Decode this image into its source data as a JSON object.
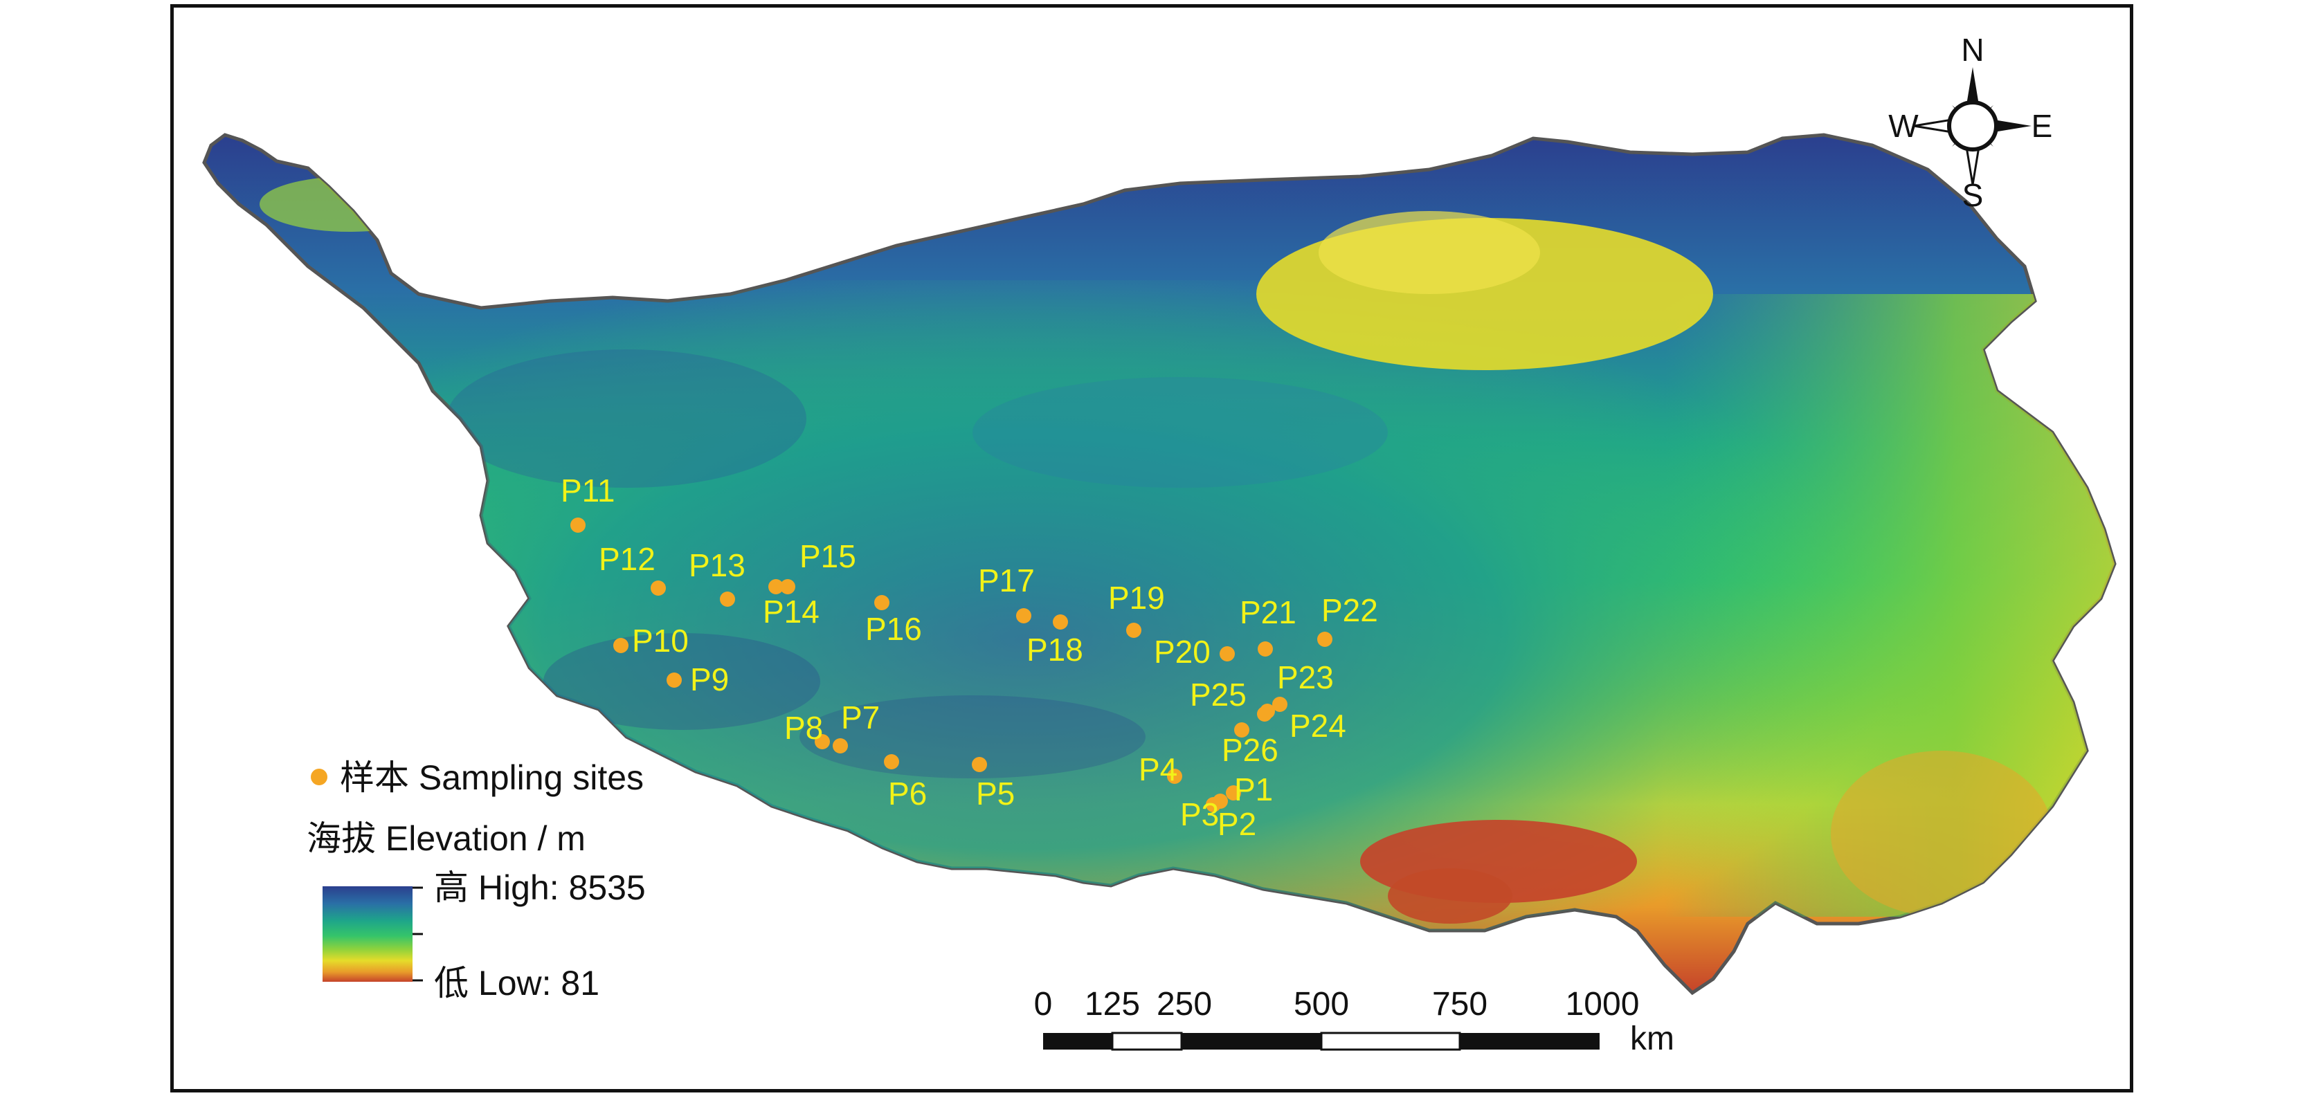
{
  "map": {
    "region_fill_colors": [
      "#2f4f95",
      "#2a7aa8",
      "#1ea28a",
      "#33c36a",
      "#8bd23c",
      "#e3dc28",
      "#e8a82a",
      "#c8502a"
    ]
  },
  "sites": [
    {
      "label": "P1"
    },
    {
      "label": "P2"
    },
    {
      "label": "P3"
    },
    {
      "label": "P4"
    },
    {
      "label": "P5"
    },
    {
      "label": "P6"
    },
    {
      "label": "P7"
    },
    {
      "label": "P8"
    },
    {
      "label": "P9"
    },
    {
      "label": "P10"
    },
    {
      "label": "P11"
    },
    {
      "label": "P12"
    },
    {
      "label": "P13"
    },
    {
      "label": "P14"
    },
    {
      "label": "P15"
    },
    {
      "label": "P16"
    },
    {
      "label": "P17"
    },
    {
      "label": "P18"
    },
    {
      "label": "P19"
    },
    {
      "label": "P20"
    },
    {
      "label": "P21"
    },
    {
      "label": "P22"
    },
    {
      "label": "P23"
    },
    {
      "label": "P24"
    },
    {
      "label": "P25"
    },
    {
      "label": "P26"
    }
  ],
  "site_marker_color": "#f5a623",
  "label_color": "#f2f218",
  "legend": {
    "sampling_sites": "样本 Sampling sites",
    "elevation_title": "海拔 Elevation / m",
    "high": "高 High: 8535",
    "low": "低 Low: 81"
  },
  "compass": {
    "n": "N",
    "s": "S",
    "e": "E",
    "w": "W",
    "icon": "north-arrow-compass-icon"
  },
  "scale_bar": {
    "ticks": [
      "0",
      "125",
      "250",
      "500",
      "750",
      "1000"
    ],
    "unit": "km"
  }
}
